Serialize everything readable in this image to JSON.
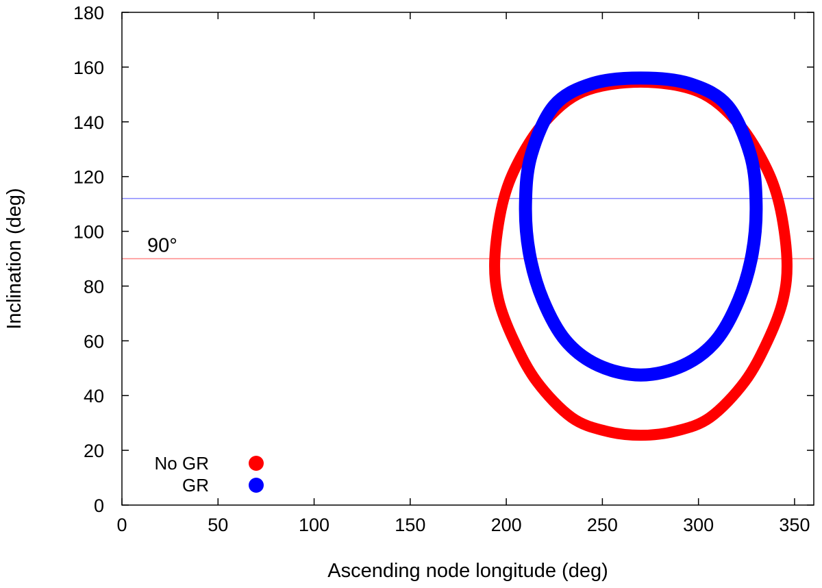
{
  "chart_data": {
    "type": "line",
    "title": "",
    "xlabel": "Ascending node longitude (deg)",
    "ylabel": "Inclination (deg)",
    "xlim": [
      0,
      360
    ],
    "ylim": [
      0,
      180
    ],
    "xticks": [
      0,
      50,
      100,
      150,
      200,
      250,
      300,
      350
    ],
    "yticks": [
      0,
      20,
      40,
      60,
      80,
      100,
      120,
      140,
      160,
      180
    ],
    "grid": false,
    "legend": {
      "placement": "bottom-left"
    },
    "series": [
      {
        "name": "No GR",
        "color": "#ff0000",
        "curve": "closed loop",
        "points": [
          [
            270,
            154.5
          ],
          [
            300,
            151
          ],
          [
            320,
            140
          ],
          [
            334,
            125
          ],
          [
            342,
            110
          ],
          [
            346,
            90
          ],
          [
            344,
            75
          ],
          [
            336,
            60
          ],
          [
            324,
            45
          ],
          [
            306,
            32
          ],
          [
            288,
            27
          ],
          [
            270,
            25.5
          ],
          [
            252,
            27
          ],
          [
            234,
            32
          ],
          [
            216,
            45
          ],
          [
            204,
            60
          ],
          [
            196,
            75
          ],
          [
            194,
            90
          ],
          [
            198,
            110
          ],
          [
            206,
            125
          ],
          [
            220,
            140
          ],
          [
            240,
            151
          ]
        ]
      },
      {
        "name": "GR",
        "color": "#0000ff",
        "curve": "closed loop",
        "points": [
          [
            270,
            156
          ],
          [
            295,
            154
          ],
          [
            315,
            146
          ],
          [
            327,
            128
          ],
          [
            330,
            110
          ],
          [
            328,
            92
          ],
          [
            321,
            75
          ],
          [
            309,
            60
          ],
          [
            292,
            51
          ],
          [
            270,
            47.5
          ],
          [
            248,
            51
          ],
          [
            231,
            60
          ],
          [
            219,
            75
          ],
          [
            212,
            92
          ],
          [
            210,
            110
          ],
          [
            213,
            128
          ],
          [
            225,
            146
          ],
          [
            245,
            154
          ]
        ]
      }
    ],
    "reference_lines": [
      {
        "y": 112,
        "color": "#8888ff"
      },
      {
        "y": 90,
        "color": "#ff8888"
      }
    ],
    "annotations": [
      {
        "text": "90°",
        "x": 10,
        "y": 90
      }
    ]
  }
}
